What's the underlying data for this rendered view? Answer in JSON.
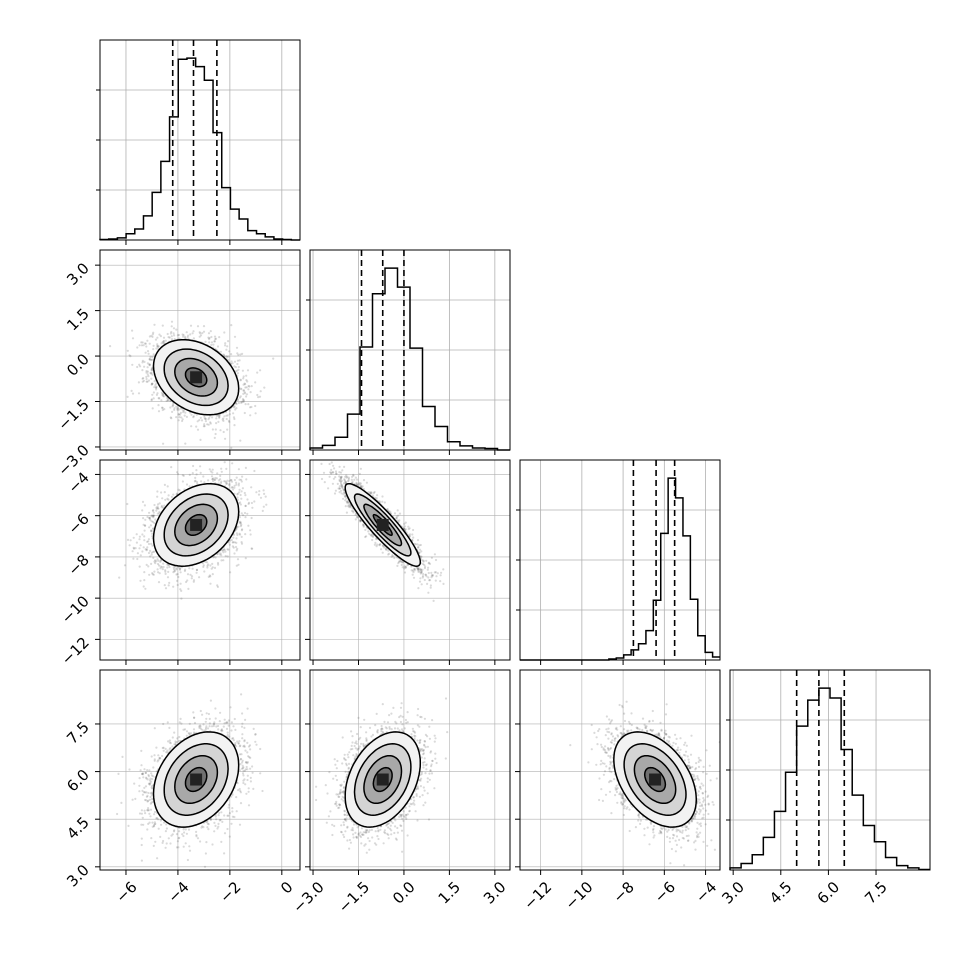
{
  "chart_data": {
    "type": "corner",
    "n_params": 4,
    "colors": {
      "line": "#000000",
      "grid": "#b0b0b0",
      "scatter": "#555555",
      "hist_fill": "#ffffff"
    },
    "grid": true,
    "params": [
      {
        "range": [
          -7.0,
          0.7
        ],
        "ticks": [
          -6,
          -4,
          -2,
          0
        ],
        "tick_labels": [
          "−6",
          "−4",
          "−2",
          "0"
        ],
        "quantiles": [
          -4.2,
          -3.4,
          -2.5
        ],
        "hist": {
          "edges": [
            -7.0,
            0.7
          ],
          "counts": [
            1,
            2,
            4,
            12,
            21,
            46,
            91,
            150,
            235,
            345,
            347,
            331,
            305,
            205,
            100,
            59,
            40,
            18,
            12,
            6,
            2,
            1,
            0
          ]
        }
      },
      {
        "range": [
          -3.1,
          3.5
        ],
        "ticks": [
          -3.0,
          -1.5,
          0.0,
          1.5,
          3.0
        ],
        "tick_labels": [
          "−3.0",
          "−1.5",
          "0.0",
          "1.5",
          "3.0"
        ],
        "quantiles": [
          -1.4,
          -0.7,
          0.0
        ],
        "hist": {
          "edges": [
            -3.1,
            3.5
          ],
          "counts": [
            4,
            9,
            25,
            70,
            201,
            305,
            355,
            318,
            199,
            85,
            46,
            16,
            8,
            4,
            3,
            0
          ]
        }
      },
      {
        "range": [
          -13.0,
          -3.3
        ],
        "ticks": [
          -12,
          -10,
          -8,
          -6,
          -4
        ],
        "tick_labels": [
          "−12",
          "−10",
          "−8",
          "−6",
          "−4"
        ],
        "quantiles": [
          -7.5,
          -6.4,
          -5.5
        ],
        "hist": {
          "edges": [
            -13.0,
            -3.3
          ],
          "counts": [
            0,
            0,
            0,
            0,
            0,
            0,
            0,
            0,
            0,
            0,
            0,
            0,
            2,
            4,
            10,
            20,
            32,
            58,
            118,
            250,
            359,
            320,
            245,
            120,
            48,
            15,
            6
          ]
        }
      },
      {
        "range": [
          2.9,
          9.2
        ],
        "ticks": [
          3.0,
          4.5,
          6.0,
          7.5
        ],
        "tick_labels": [
          "3.0",
          "4.5",
          "6.0",
          "7.5"
        ],
        "quantiles": [
          5.0,
          5.7,
          6.5
        ],
        "hist": {
          "edges": [
            2.9,
            9.2
          ],
          "counts": [
            4,
            12,
            28,
            60,
            108,
            180,
            265,
            313,
            335,
            317,
            222,
            138,
            82,
            52,
            23,
            8,
            4,
            1
          ]
        }
      }
    ],
    "pairs": [
      {
        "x": 0,
        "y": 1,
        "mean": [
          -3.3,
          -0.7
        ],
        "sigma": [
          0.82,
          0.62
        ],
        "rho": -0.3,
        "n": 3200
      },
      {
        "x": 0,
        "y": 2,
        "mean": [
          -3.3,
          -6.45
        ],
        "sigma": [
          0.82,
          1.0
        ],
        "rho": 0.32,
        "n": 3200
      },
      {
        "x": 1,
        "y": 2,
        "mean": [
          -0.7,
          -6.45
        ],
        "sigma": [
          0.62,
          1.0
        ],
        "rho": -0.9,
        "n": 3200
      },
      {
        "x": 0,
        "y": 3,
        "mean": [
          -3.3,
          5.75
        ],
        "sigma": [
          0.82,
          0.75
        ],
        "rho": 0.3,
        "n": 3200
      },
      {
        "x": 1,
        "y": 3,
        "mean": [
          -0.7,
          5.75
        ],
        "sigma": [
          0.62,
          0.75
        ],
        "rho": 0.35,
        "n": 3200
      },
      {
        "x": 2,
        "y": 3,
        "mean": [
          -6.45,
          5.75
        ],
        "sigma": [
          1.0,
          0.75
        ],
        "rho": -0.42,
        "n": 3200
      }
    ],
    "contour_levels_sigma": [
      0.5,
      1.0,
      1.5,
      2.0
    ]
  }
}
